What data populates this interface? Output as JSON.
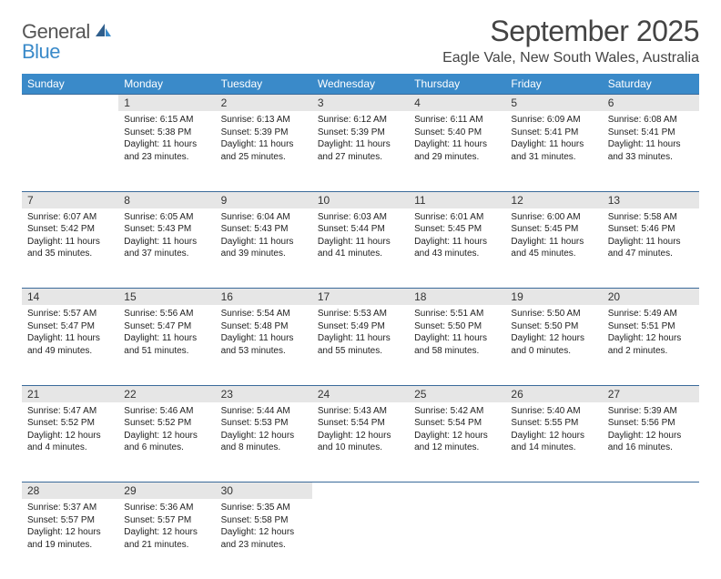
{
  "brand": {
    "part1": "General",
    "part2": "Blue"
  },
  "title": "September 2025",
  "location": "Eagle Vale, New South Wales, Australia",
  "colors": {
    "header_bg": "#3a8ac9",
    "daynum_bg": "#e6e6e6",
    "border": "#3a6a9a",
    "brand_blue": "#3a8ac9",
    "text": "#333333"
  },
  "day_headers": [
    "Sunday",
    "Monday",
    "Tuesday",
    "Wednesday",
    "Thursday",
    "Friday",
    "Saturday"
  ],
  "weeks": [
    [
      null,
      {
        "n": "1",
        "sr": "6:15 AM",
        "ss": "5:38 PM",
        "dl": "11 hours and 23 minutes."
      },
      {
        "n": "2",
        "sr": "6:13 AM",
        "ss": "5:39 PM",
        "dl": "11 hours and 25 minutes."
      },
      {
        "n": "3",
        "sr": "6:12 AM",
        "ss": "5:39 PM",
        "dl": "11 hours and 27 minutes."
      },
      {
        "n": "4",
        "sr": "6:11 AM",
        "ss": "5:40 PM",
        "dl": "11 hours and 29 minutes."
      },
      {
        "n": "5",
        "sr": "6:09 AM",
        "ss": "5:41 PM",
        "dl": "11 hours and 31 minutes."
      },
      {
        "n": "6",
        "sr": "6:08 AM",
        "ss": "5:41 PM",
        "dl": "11 hours and 33 minutes."
      }
    ],
    [
      {
        "n": "7",
        "sr": "6:07 AM",
        "ss": "5:42 PM",
        "dl": "11 hours and 35 minutes."
      },
      {
        "n": "8",
        "sr": "6:05 AM",
        "ss": "5:43 PM",
        "dl": "11 hours and 37 minutes."
      },
      {
        "n": "9",
        "sr": "6:04 AM",
        "ss": "5:43 PM",
        "dl": "11 hours and 39 minutes."
      },
      {
        "n": "10",
        "sr": "6:03 AM",
        "ss": "5:44 PM",
        "dl": "11 hours and 41 minutes."
      },
      {
        "n": "11",
        "sr": "6:01 AM",
        "ss": "5:45 PM",
        "dl": "11 hours and 43 minutes."
      },
      {
        "n": "12",
        "sr": "6:00 AM",
        "ss": "5:45 PM",
        "dl": "11 hours and 45 minutes."
      },
      {
        "n": "13",
        "sr": "5:58 AM",
        "ss": "5:46 PM",
        "dl": "11 hours and 47 minutes."
      }
    ],
    [
      {
        "n": "14",
        "sr": "5:57 AM",
        "ss": "5:47 PM",
        "dl": "11 hours and 49 minutes."
      },
      {
        "n": "15",
        "sr": "5:56 AM",
        "ss": "5:47 PM",
        "dl": "11 hours and 51 minutes."
      },
      {
        "n": "16",
        "sr": "5:54 AM",
        "ss": "5:48 PM",
        "dl": "11 hours and 53 minutes."
      },
      {
        "n": "17",
        "sr": "5:53 AM",
        "ss": "5:49 PM",
        "dl": "11 hours and 55 minutes."
      },
      {
        "n": "18",
        "sr": "5:51 AM",
        "ss": "5:50 PM",
        "dl": "11 hours and 58 minutes."
      },
      {
        "n": "19",
        "sr": "5:50 AM",
        "ss": "5:50 PM",
        "dl": "12 hours and 0 minutes."
      },
      {
        "n": "20",
        "sr": "5:49 AM",
        "ss": "5:51 PM",
        "dl": "12 hours and 2 minutes."
      }
    ],
    [
      {
        "n": "21",
        "sr": "5:47 AM",
        "ss": "5:52 PM",
        "dl": "12 hours and 4 minutes."
      },
      {
        "n": "22",
        "sr": "5:46 AM",
        "ss": "5:52 PM",
        "dl": "12 hours and 6 minutes."
      },
      {
        "n": "23",
        "sr": "5:44 AM",
        "ss": "5:53 PM",
        "dl": "12 hours and 8 minutes."
      },
      {
        "n": "24",
        "sr": "5:43 AM",
        "ss": "5:54 PM",
        "dl": "12 hours and 10 minutes."
      },
      {
        "n": "25",
        "sr": "5:42 AM",
        "ss": "5:54 PM",
        "dl": "12 hours and 12 minutes."
      },
      {
        "n": "26",
        "sr": "5:40 AM",
        "ss": "5:55 PM",
        "dl": "12 hours and 14 minutes."
      },
      {
        "n": "27",
        "sr": "5:39 AM",
        "ss": "5:56 PM",
        "dl": "12 hours and 16 minutes."
      }
    ],
    [
      {
        "n": "28",
        "sr": "5:37 AM",
        "ss": "5:57 PM",
        "dl": "12 hours and 19 minutes."
      },
      {
        "n": "29",
        "sr": "5:36 AM",
        "ss": "5:57 PM",
        "dl": "12 hours and 21 minutes."
      },
      {
        "n": "30",
        "sr": "5:35 AM",
        "ss": "5:58 PM",
        "dl": "12 hours and 23 minutes."
      },
      null,
      null,
      null,
      null
    ]
  ],
  "labels": {
    "sunrise": "Sunrise:",
    "sunset": "Sunset:",
    "daylight": "Daylight:"
  }
}
